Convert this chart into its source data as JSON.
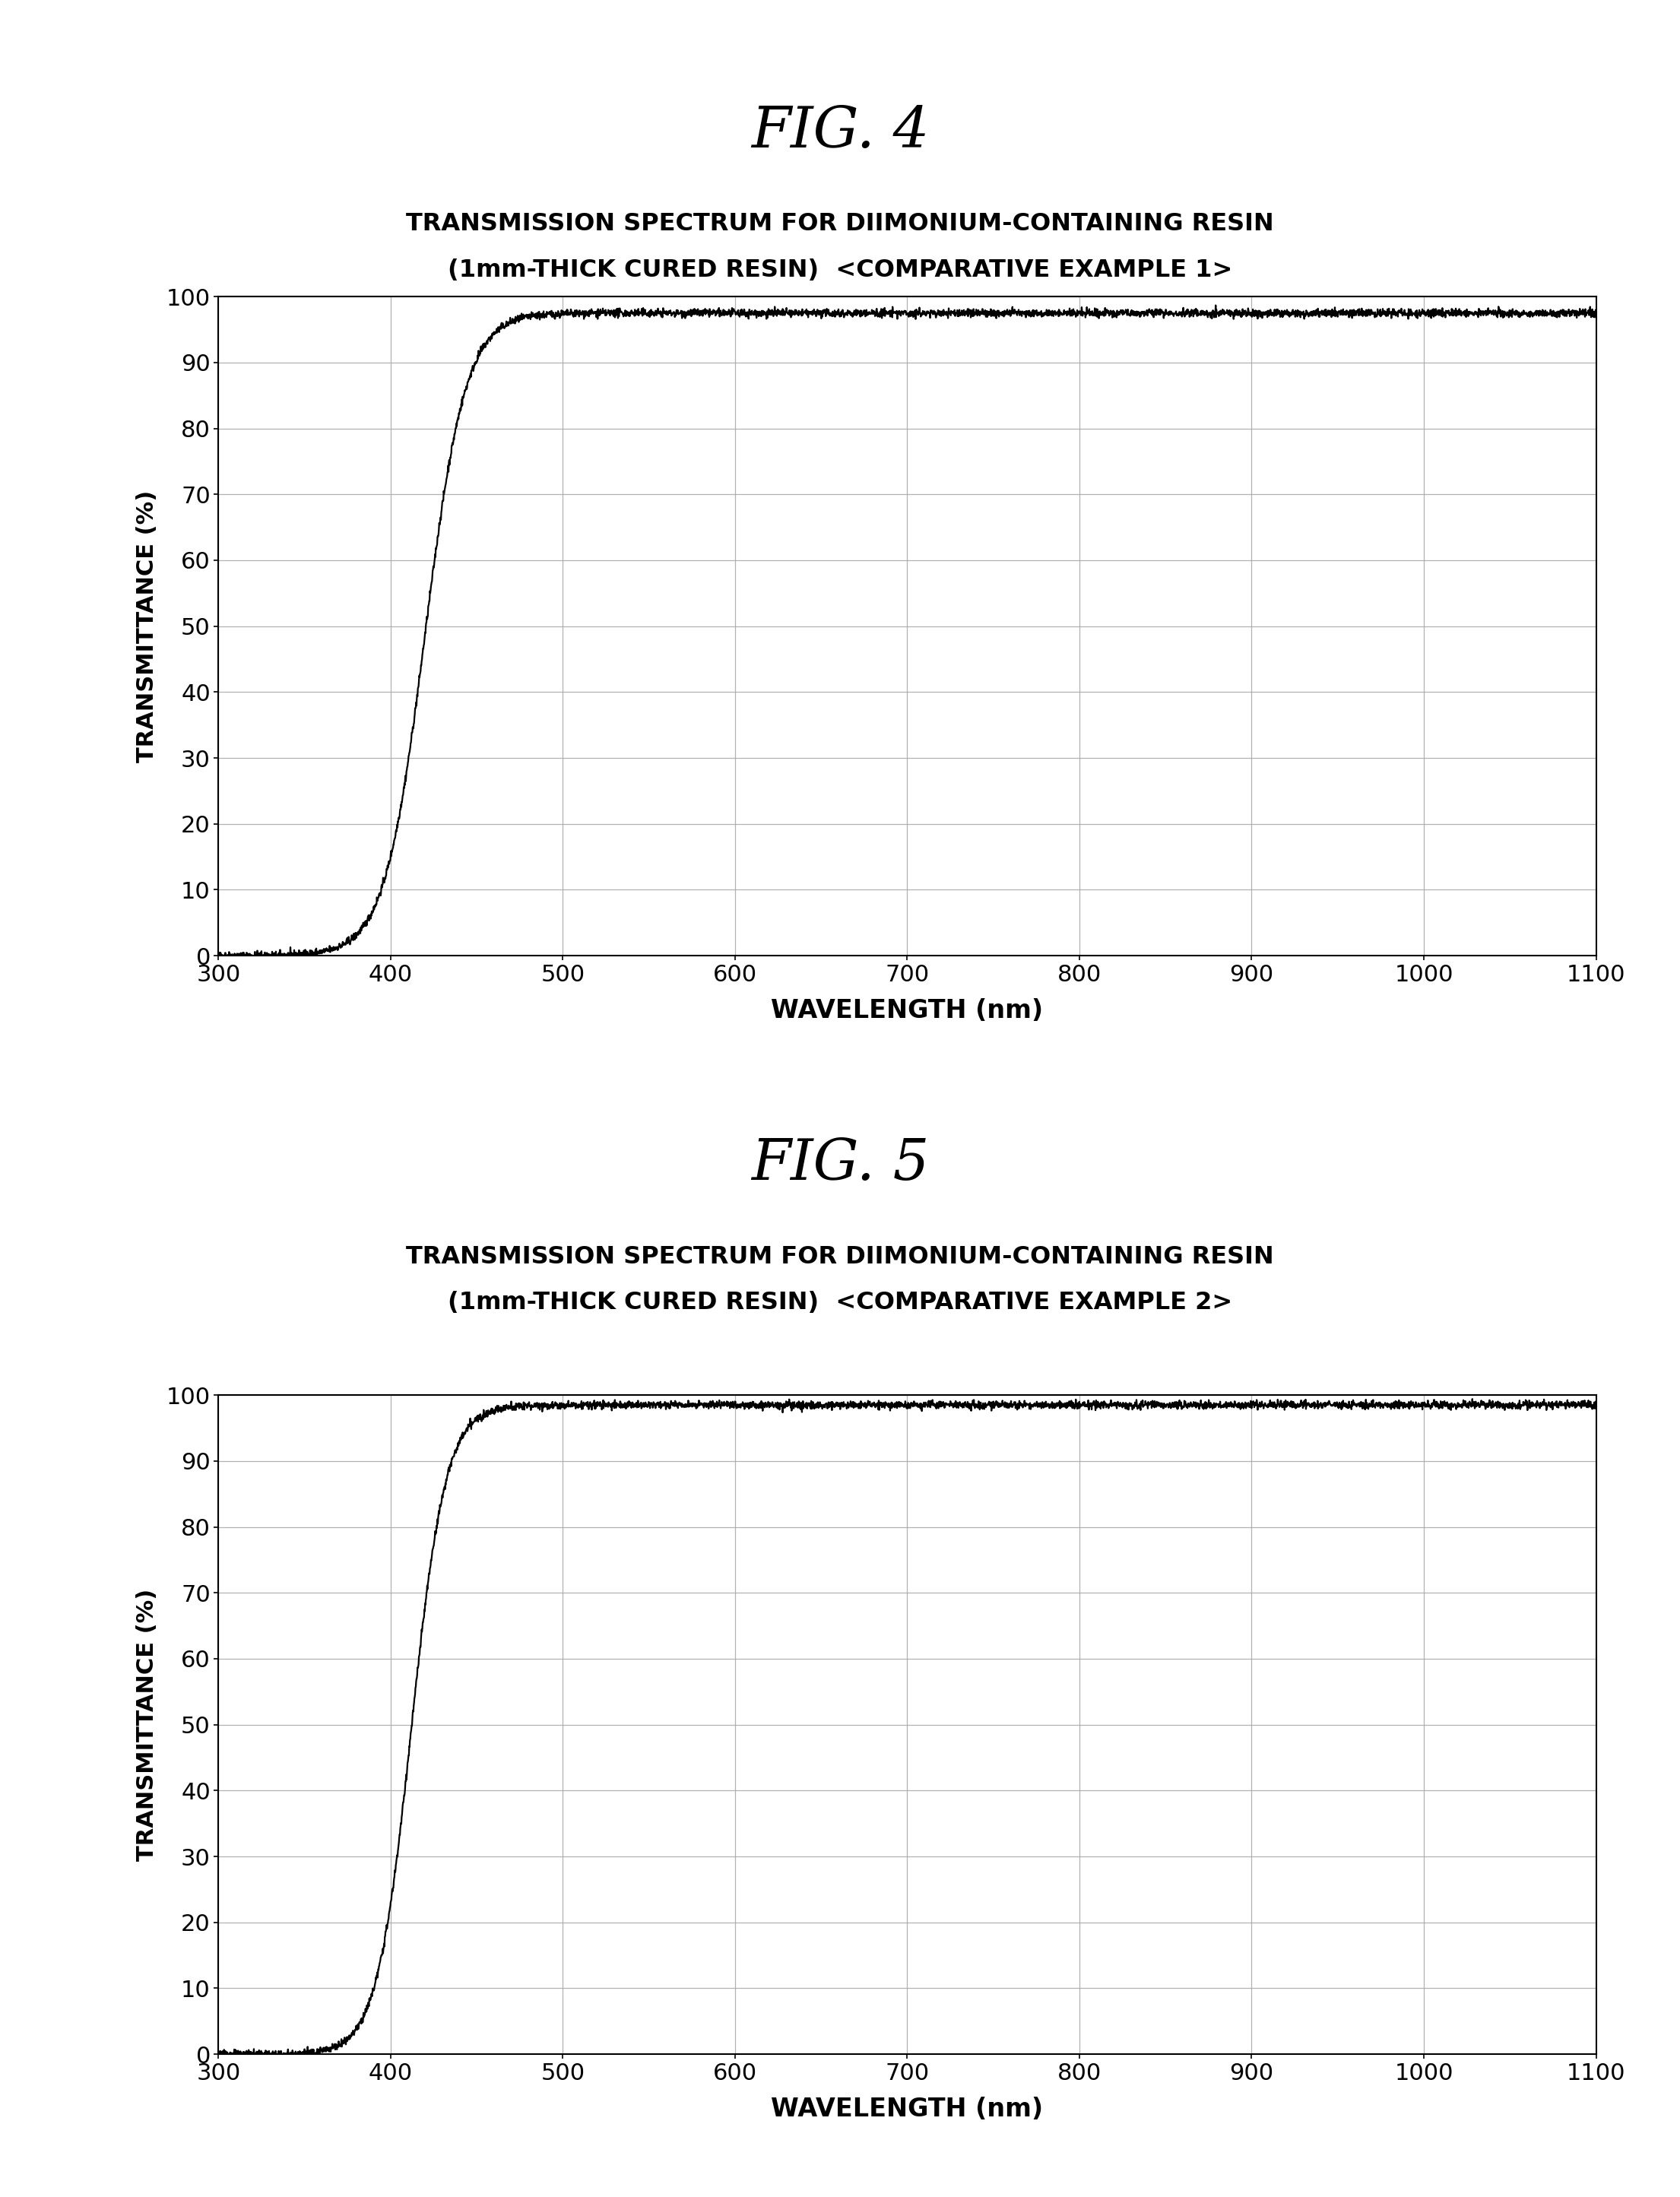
{
  "fig4_title": "FIG. 4",
  "fig5_title": "FIG. 5",
  "subtitle1_line1": "TRANSMISSION SPECTRUM FOR DIIMONIUM-CONTAINING RESIN",
  "subtitle1_line2": "(1mm-THICK CURED RESIN)  <COMPARATIVE EXAMPLE 1>",
  "subtitle2_line1": "TRANSMISSION SPECTRUM FOR DIIMONIUM-CONTAINING RESIN",
  "subtitle2_line2": "(1mm-THICK CURED RESIN)  <COMPARATIVE EXAMPLE 2>",
  "xlabel": "WAVELENGTH (nm)",
  "ylabel": "TRANSMITTANCE (%)",
  "xlim": [
    300,
    1100
  ],
  "ylim": [
    0,
    100
  ],
  "xticks": [
    300,
    400,
    500,
    600,
    700,
    800,
    900,
    1000,
    1100
  ],
  "yticks": [
    0,
    10,
    20,
    30,
    40,
    50,
    60,
    70,
    80,
    90,
    100
  ],
  "background_color": "#ffffff",
  "line_color": "#000000",
  "grid_color": "#aaaaaa",
  "fig4_midpoint": 420,
  "fig4_steepness": 0.085,
  "fig4_max_val": 97.5,
  "fig5_midpoint": 412,
  "fig5_steepness": 0.1,
  "fig5_max_val": 98.5
}
